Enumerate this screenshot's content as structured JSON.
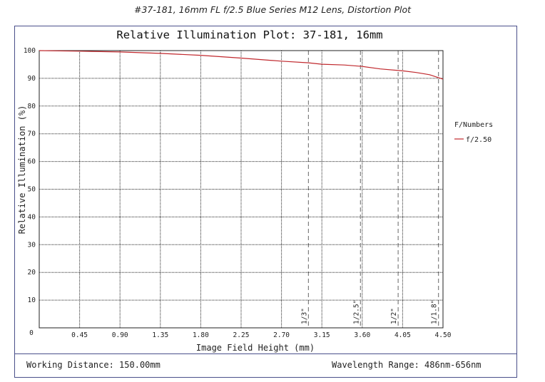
{
  "caption": "#37-181, 16mm FL f/2.5 Blue Series M12 Lens, Distortion Plot",
  "footer": {
    "working_distance": "Working Distance: 150.00mm",
    "wavelength_range": "Wavelength Range: 486nm-656nm"
  },
  "legend": {
    "title": "F/Numbers"
  },
  "colors": {
    "series": "#c0282d",
    "frame": "#4a4f8a",
    "grid": "#222222"
  },
  "chart_data": {
    "type": "line",
    "title": "Relative Illumination Plot: 37-181, 16mm",
    "xlabel": "Image Field Height (mm)",
    "ylabel": "Relative Illumination (%)",
    "xlim": [
      0,
      4.5
    ],
    "ylim": [
      0,
      100
    ],
    "x_ticks": [
      "0.45",
      "0.90",
      "1.35",
      "1.80",
      "2.25",
      "2.70",
      "3.15",
      "3.60",
      "4.05",
      "4.50"
    ],
    "y_ticks": [
      "10",
      "20",
      "30",
      "40",
      "50",
      "60",
      "70",
      "80",
      "90",
      "100"
    ],
    "origin_label": "0",
    "grid": "dotted",
    "legend_position": "right",
    "series": [
      {
        "name": "f/2.50",
        "x": [
          0,
          0.45,
          0.9,
          1.35,
          1.8,
          2.25,
          2.7,
          3.0,
          3.15,
          3.4,
          3.6,
          3.8,
          4.05,
          4.2,
          4.35,
          4.5
        ],
        "y": [
          100,
          99.8,
          99.5,
          99.0,
          98.3,
          97.3,
          96.2,
          95.6,
          95.1,
          94.8,
          94.3,
          93.4,
          92.7,
          92.1,
          91.3,
          89.7
        ]
      }
    ],
    "sensor_markers": [
      {
        "label": "1/3\"",
        "x": 3.0
      },
      {
        "label": "1/2.5\"",
        "x": 3.58
      },
      {
        "label": "1/2\"",
        "x": 4.0
      },
      {
        "label": "1/1.8\"",
        "x": 4.45
      }
    ]
  }
}
